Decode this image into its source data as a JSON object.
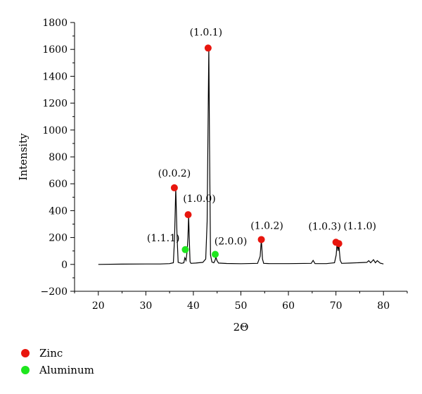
{
  "chart_data": {
    "type": "line",
    "title": "",
    "xlabel": "2Θ",
    "ylabel": "Intensity",
    "xlim": [
      15,
      85
    ],
    "ylim": [
      -200,
      1800
    ],
    "xticks": [
      20,
      30,
      40,
      50,
      60,
      70,
      80
    ],
    "yticks": [
      -200,
      0,
      200,
      400,
      600,
      800,
      1000,
      1200,
      1400,
      1600,
      1800
    ],
    "xtick_labels": [
      "20",
      "30",
      "40",
      "50",
      "60",
      "70",
      "80"
    ],
    "ytick_labels": [
      "−200",
      "0",
      "200",
      "400",
      "600",
      "800",
      "1000",
      "1200",
      "1400",
      "1600",
      "1800"
    ],
    "grid": false,
    "series": [
      {
        "x": [
          20,
          25,
          30,
          33,
          35,
          35.8,
          36.05,
          36.3,
          36.55,
          36.8,
          37.5,
          38.0,
          38.2,
          38.45,
          38.7,
          38.85,
          39.0,
          39.15,
          39.3,
          39.5,
          40.5,
          42.0,
          42.6,
          42.9,
          43.1,
          43.25,
          43.4,
          43.6,
          43.9,
          44.3,
          44.55,
          44.75,
          44.95,
          45.3,
          47,
          50,
          53.5,
          54.05,
          54.3,
          54.55,
          54.8,
          56,
          60,
          64.8,
          65.2,
          65.6,
          68,
          69.7,
          70.05,
          70.25,
          70.45,
          70.6,
          70.75,
          70.9,
          71.2,
          73,
          76.5,
          76.9,
          77.3,
          77.9,
          78.3,
          78.7,
          79.3,
          80
        ],
        "y": [
          0,
          2,
          3,
          3,
          6,
          12,
          200,
          570,
          230,
          15,
          8,
          12,
          50,
          30,
          100,
          200,
          360,
          180,
          20,
          8,
          10,
          15,
          40,
          320,
          1080,
          1620,
          900,
          70,
          18,
          12,
          30,
          55,
          30,
          10,
          7,
          5,
          8,
          60,
          185,
          40,
          8,
          6,
          6,
          8,
          30,
          6,
          6,
          12,
          70,
          160,
          100,
          160,
          90,
          30,
          8,
          10,
          15,
          28,
          12,
          35,
          12,
          28,
          10,
          3
        ]
      }
    ],
    "markers": [
      {
        "label": "(1.0.1)",
        "x": 43.1,
        "y": 1610,
        "phase": "zinc"
      },
      {
        "label": "(0.0.2)",
        "x": 36.0,
        "y": 570,
        "phase": "zinc"
      },
      {
        "label": "(1.0.0)",
        "x": 38.9,
        "y": 370,
        "phase": "zinc"
      },
      {
        "label": "(1.1.1)",
        "x": 38.3,
        "y": 110,
        "phase": "aluminum"
      },
      {
        "label": "(2.0.0)",
        "x": 44.6,
        "y": 75,
        "phase": "aluminum"
      },
      {
        "label": "(1.0.2)",
        "x": 54.3,
        "y": 185,
        "phase": "zinc"
      },
      {
        "label": "(1.0.3)",
        "x": 70.0,
        "y": 165,
        "phase": "zinc"
      },
      {
        "label": "(1.1.0)",
        "x": 70.6,
        "y": 155,
        "phase": "zinc"
      }
    ],
    "legend": {
      "placement": "bottom-left",
      "items": [
        {
          "label": "Zinc",
          "phase": "zinc",
          "color": "#e8160e"
        },
        {
          "label": "Aluminum",
          "phase": "aluminum",
          "color": "#1ee61e"
        }
      ]
    },
    "colors": {
      "line": "#000000",
      "zinc": "#e8160e",
      "aluminum": "#1ee61e"
    }
  }
}
